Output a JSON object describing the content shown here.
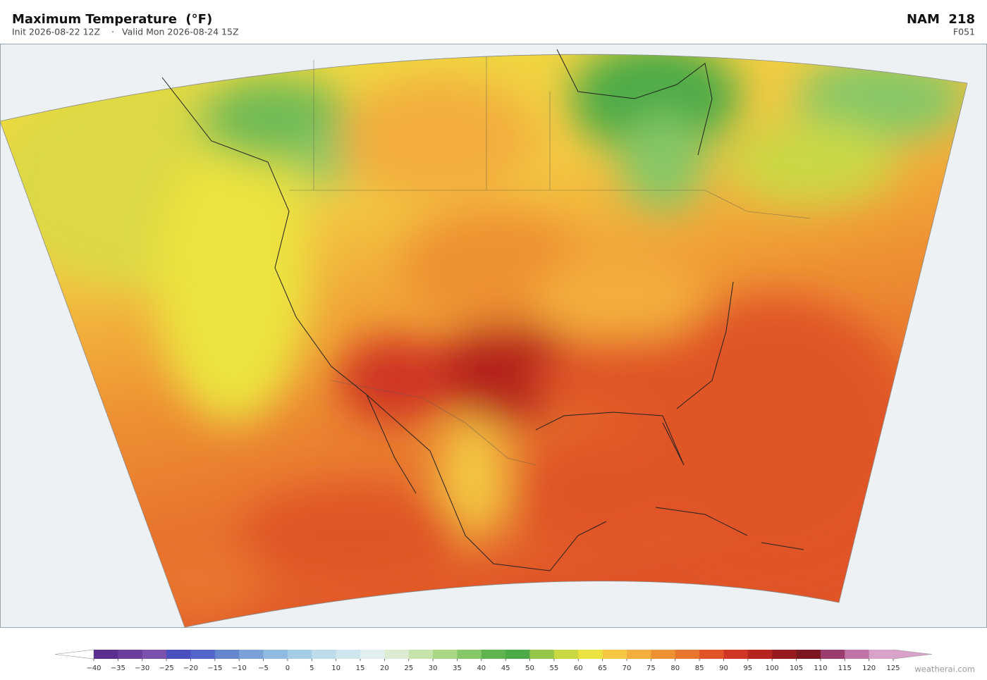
{
  "header": {
    "title": "Maximum Temperature  (°F)",
    "init": "Init 2026-08-22 12Z",
    "separator": "·",
    "valid": "Valid Mon 2026-08-24 15Z",
    "model": "NAM  218",
    "frame": "F051"
  },
  "colorbar": {
    "ticks": [
      {
        "value": -40,
        "label": "−40"
      },
      {
        "value": -35,
        "label": "−35"
      },
      {
        "value": -30,
        "label": "−30"
      },
      {
        "value": -25,
        "label": "−25"
      },
      {
        "value": -20,
        "label": "−20"
      },
      {
        "value": -15,
        "label": "−15"
      },
      {
        "value": -10,
        "label": "−10"
      },
      {
        "value": -5,
        "label": "−5"
      },
      0,
      5,
      10,
      15,
      20,
      25,
      30,
      35,
      40,
      45,
      50,
      55,
      60,
      65,
      70,
      75,
      80,
      85,
      90,
      95,
      100,
      105,
      110,
      115,
      120,
      125
    ],
    "colors": [
      "#5a2d8e",
      "#6b3d9c",
      "#7a52ad",
      "#4b4fbd",
      "#5265c9",
      "#6685cf",
      "#7ba2d8",
      "#8fbbe0",
      "#a5cde6",
      "#bcdcea",
      "#cfe6ee",
      "#e2f0ef",
      "#dcecd2",
      "#c6e3a9",
      "#a8d685",
      "#86c766",
      "#5fb450",
      "#4caa46",
      "#95c64a",
      "#cbd844",
      "#ece340",
      "#f4c842",
      "#f3ae3d",
      "#ee9133",
      "#e8752e",
      "#e05428",
      "#cf3623",
      "#b5241f",
      "#951b1e",
      "#7b1620",
      "#9b3c6e",
      "#bf74a7",
      "#d9a3c9"
    ],
    "under_color": "#ffffff",
    "over_color": "#d9a3c9"
  },
  "credit": "weatherai.com"
}
